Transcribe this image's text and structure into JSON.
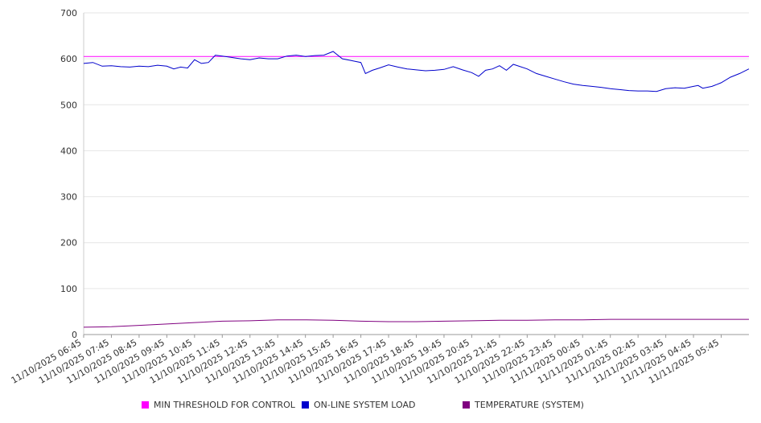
{
  "chart_data": {
    "type": "line",
    "grid": true,
    "legend_placement": "bottom",
    "ylim": [
      0,
      700
    ],
    "yticks": [
      "0",
      "100",
      "200",
      "300",
      "400",
      "500",
      "600",
      "700"
    ],
    "xlim": [
      "11/10/2025 06:45",
      "11/11/2025 06:45"
    ],
    "xticks": [
      "11/10/2025 06:45",
      "11/10/2025 07:45",
      "11/10/2025 08:45",
      "11/10/2025 09:45",
      "11/10/2025 10:45",
      "11/10/2025 11:45",
      "11/10/2025 12:45",
      "11/10/2025 13:45",
      "11/10/2025 14:45",
      "11/10/2025 15:45",
      "11/10/2025 16:45",
      "11/10/2025 17:45",
      "11/10/2025 18:45",
      "11/10/2025 19:45",
      "11/10/2025 20:45",
      "11/10/2025 21:45",
      "11/10/2025 22:45",
      "11/10/2025 23:45",
      "11/11/2025 00:45",
      "11/11/2025 01:45",
      "11/11/2025 02:45",
      "11/11/2025 03:45",
      "11/11/2025 04:45",
      "11/11/2025 05:45"
    ],
    "series": [
      {
        "name": "MIN THRESHOLD FOR CONTROL",
        "color": "#ff00ff",
        "points": [
          [
            "11/10/2025 06:45",
            605
          ],
          [
            "11/11/2025 06:45",
            605
          ]
        ]
      },
      {
        "name": "ON-LINE SYSTEM LOAD",
        "color": "#0000cc",
        "points": [
          [
            "11/10/2025 06:45",
            590
          ],
          [
            "11/10/2025 07:05",
            592
          ],
          [
            "11/10/2025 07:25",
            584
          ],
          [
            "11/10/2025 07:45",
            585
          ],
          [
            "11/10/2025 08:05",
            583
          ],
          [
            "11/10/2025 08:25",
            582
          ],
          [
            "11/10/2025 08:45",
            584
          ],
          [
            "11/10/2025 09:05",
            583
          ],
          [
            "11/10/2025 09:25",
            586
          ],
          [
            "11/10/2025 09:45",
            584
          ],
          [
            "11/10/2025 10:00",
            578
          ],
          [
            "11/10/2025 10:15",
            582
          ],
          [
            "11/10/2025 10:30",
            580
          ],
          [
            "11/10/2025 10:45",
            598
          ],
          [
            "11/10/2025 11:00",
            590
          ],
          [
            "11/10/2025 11:15",
            592
          ],
          [
            "11/10/2025 11:30",
            608
          ],
          [
            "11/10/2025 11:45",
            606
          ],
          [
            "11/10/2025 12:05",
            603
          ],
          [
            "11/10/2025 12:25",
            600
          ],
          [
            "11/10/2025 12:45",
            598
          ],
          [
            "11/10/2025 13:05",
            602
          ],
          [
            "11/10/2025 13:25",
            600
          ],
          [
            "11/10/2025 13:45",
            600
          ],
          [
            "11/10/2025 14:05",
            606
          ],
          [
            "11/10/2025 14:25",
            608
          ],
          [
            "11/10/2025 14:45",
            605
          ],
          [
            "11/10/2025 15:05",
            607
          ],
          [
            "11/10/2025 15:25",
            608
          ],
          [
            "11/10/2025 15:45",
            616
          ],
          [
            "11/10/2025 16:05",
            600
          ],
          [
            "11/10/2025 16:25",
            596
          ],
          [
            "11/10/2025 16:45",
            592
          ],
          [
            "11/10/2025 16:55",
            568
          ],
          [
            "11/10/2025 17:10",
            575
          ],
          [
            "11/10/2025 17:25",
            580
          ],
          [
            "11/10/2025 17:45",
            587
          ],
          [
            "11/10/2025 18:05",
            582
          ],
          [
            "11/10/2025 18:25",
            578
          ],
          [
            "11/10/2025 18:45",
            576
          ],
          [
            "11/10/2025 19:05",
            574
          ],
          [
            "11/10/2025 19:25",
            575
          ],
          [
            "11/10/2025 19:45",
            577
          ],
          [
            "11/10/2025 20:05",
            583
          ],
          [
            "11/10/2025 20:25",
            576
          ],
          [
            "11/10/2025 20:45",
            570
          ],
          [
            "11/10/2025 21:00",
            562
          ],
          [
            "11/10/2025 21:15",
            575
          ],
          [
            "11/10/2025 21:30",
            578
          ],
          [
            "11/10/2025 21:45",
            585
          ],
          [
            "11/10/2025 22:00",
            575
          ],
          [
            "11/10/2025 22:15",
            588
          ],
          [
            "11/10/2025 22:45",
            578
          ],
          [
            "11/10/2025 23:05",
            568
          ],
          [
            "11/10/2025 23:25",
            562
          ],
          [
            "11/10/2025 23:45",
            556
          ],
          [
            "11/11/2025 00:05",
            550
          ],
          [
            "11/11/2025 00:25",
            545
          ],
          [
            "11/11/2025 00:45",
            542
          ],
          [
            "11/11/2025 01:05",
            540
          ],
          [
            "11/11/2025 01:25",
            538
          ],
          [
            "11/11/2025 01:45",
            535
          ],
          [
            "11/11/2025 02:05",
            533
          ],
          [
            "11/11/2025 02:25",
            531
          ],
          [
            "11/11/2025 02:45",
            530
          ],
          [
            "11/11/2025 03:05",
            530
          ],
          [
            "11/11/2025 03:25",
            529
          ],
          [
            "11/11/2025 03:45",
            535
          ],
          [
            "11/11/2025 04:05",
            537
          ],
          [
            "11/11/2025 04:25",
            536
          ],
          [
            "11/11/2025 04:45",
            540
          ],
          [
            "11/11/2025 04:55",
            542
          ],
          [
            "11/11/2025 05:05",
            536
          ],
          [
            "11/11/2025 05:25",
            540
          ],
          [
            "11/11/2025 05:45",
            548
          ],
          [
            "11/11/2025 06:05",
            560
          ],
          [
            "11/11/2025 06:25",
            568
          ],
          [
            "11/11/2025 06:45",
            578
          ]
        ]
      },
      {
        "name": "TEMPERATURE (SYSTEM)",
        "color": "#800080",
        "points": [
          [
            "11/10/2025 06:45",
            16
          ],
          [
            "11/10/2025 07:45",
            17
          ],
          [
            "11/10/2025 08:45",
            20
          ],
          [
            "11/10/2025 09:45",
            23
          ],
          [
            "11/10/2025 10:45",
            26
          ],
          [
            "11/10/2025 11:45",
            29
          ],
          [
            "11/10/2025 12:45",
            30
          ],
          [
            "11/10/2025 13:45",
            32
          ],
          [
            "11/10/2025 14:45",
            32
          ],
          [
            "11/10/2025 15:45",
            31
          ],
          [
            "11/10/2025 16:45",
            29
          ],
          [
            "11/10/2025 17:45",
            28
          ],
          [
            "11/10/2025 18:45",
            28
          ],
          [
            "11/10/2025 19:45",
            29
          ],
          [
            "11/10/2025 20:45",
            30
          ],
          [
            "11/10/2025 21:45",
            31
          ],
          [
            "11/10/2025 22:45",
            31
          ],
          [
            "11/10/2025 23:45",
            32
          ],
          [
            "11/11/2025 00:45",
            32
          ],
          [
            "11/11/2025 01:45",
            33
          ],
          [
            "11/11/2025 02:45",
            33
          ],
          [
            "11/11/2025 03:45",
            33
          ],
          [
            "11/11/2025 04:45",
            33
          ],
          [
            "11/11/2025 05:45",
            33
          ],
          [
            "11/11/2025 06:45",
            33
          ]
        ]
      }
    ]
  }
}
